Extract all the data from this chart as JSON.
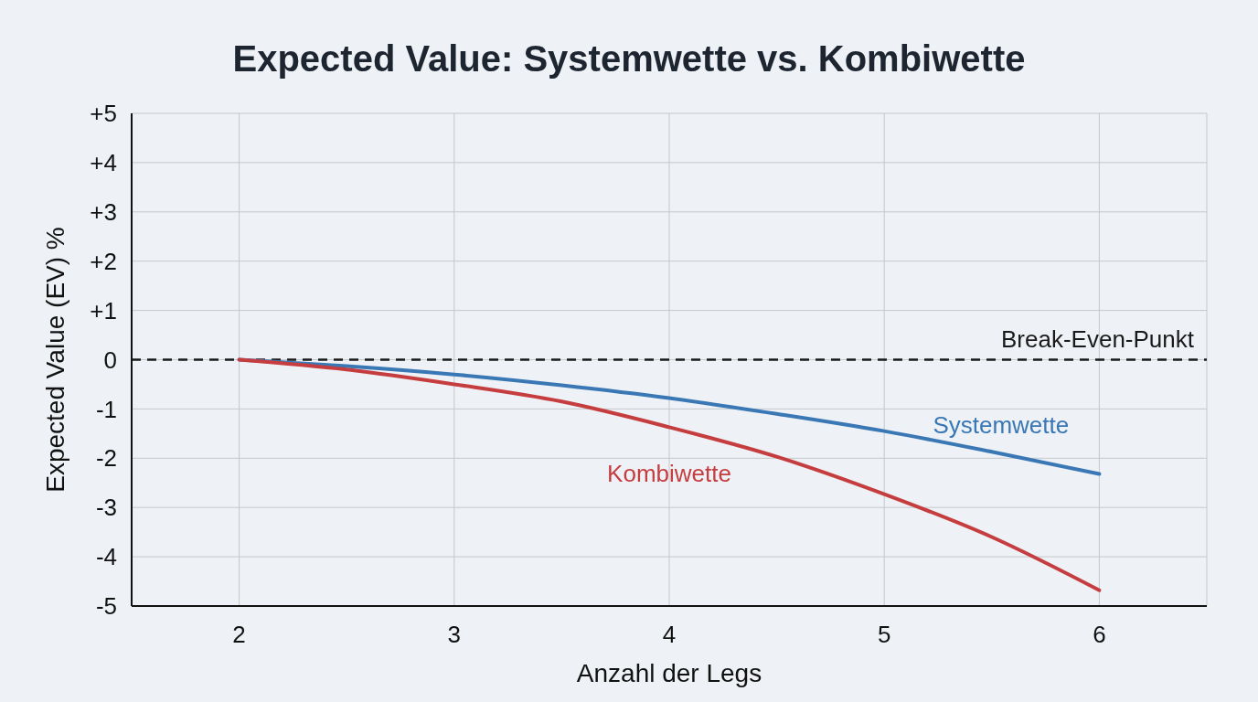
{
  "chart_data": {
    "type": "line",
    "title": "Expected Value: Systemwette vs. Kombiwette",
    "xlabel": "Anzahl der Legs",
    "ylabel": "Expected Value (EV) %",
    "x": [
      2,
      2.5,
      3,
      3.5,
      4,
      4.5,
      5,
      5.5,
      6
    ],
    "series": [
      {
        "name": "Systemwette",
        "color": "#3a78b5",
        "values": [
          0,
          -0.13,
          -0.3,
          -0.52,
          -0.78,
          -1.1,
          -1.45,
          -1.87,
          -2.32
        ]
      },
      {
        "name": "Kombiwette",
        "color": "#c63d3f",
        "values": [
          0,
          -0.2,
          -0.5,
          -0.85,
          -1.37,
          -1.97,
          -2.73,
          -3.6,
          -4.68
        ]
      }
    ],
    "xlim": [
      1.5,
      6.5
    ],
    "xticks": [
      2,
      3,
      4,
      5,
      6
    ],
    "ylim": [
      -5,
      5
    ],
    "yticks": [
      {
        "value": 5,
        "label": "+5"
      },
      {
        "value": 4,
        "label": "+4"
      },
      {
        "value": 3,
        "label": "+3"
      },
      {
        "value": 2,
        "label": "+2"
      },
      {
        "value": 1,
        "label": "+1"
      },
      {
        "value": 0,
        "label": "0"
      },
      {
        "value": -1,
        "label": "-1"
      },
      {
        "value": -2,
        "label": "-2"
      },
      {
        "value": -3,
        "label": "-3"
      },
      {
        "value": -4,
        "label": "-4"
      },
      {
        "value": -5,
        "label": "-5"
      }
    ],
    "grid": true,
    "marker": "none",
    "line_style": "solid",
    "ref_lines": [
      {
        "axis": "y",
        "value": 0,
        "label": "Break-Even-Punkt",
        "color": "#1a1a1a",
        "line_style": "dashed"
      }
    ]
  }
}
